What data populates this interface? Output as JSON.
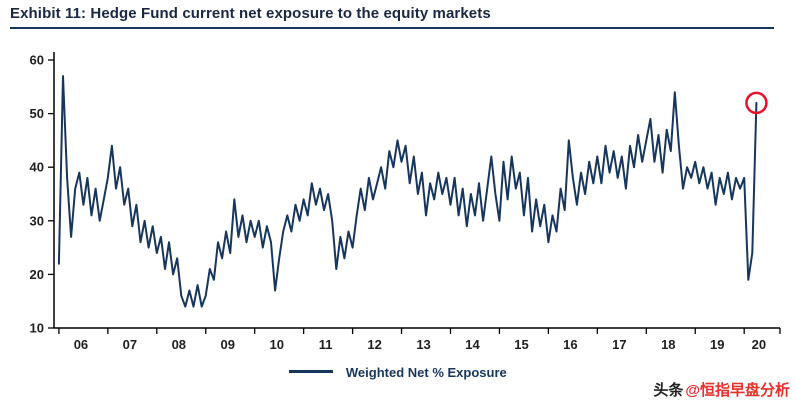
{
  "title": "Exhibit 11: Hedge Fund current net exposure to the equity markets",
  "watermark": {
    "prefix": "头条",
    "handle": "@恒指早盘分析"
  },
  "chart_data": {
    "type": "line",
    "title": "Hedge Fund current net exposure to the equity markets",
    "legend": "Weighted Net % Exposure",
    "xlabel": "",
    "ylabel": "",
    "ylim": [
      10,
      60
    ],
    "y_ticks": [
      10,
      20,
      30,
      40,
      50,
      60
    ],
    "x_start_year": 2006,
    "points_per_year": 12,
    "x_tick_labels": [
      "06",
      "07",
      "08",
      "09",
      "10",
      "11",
      "12",
      "13",
      "14",
      "15",
      "16",
      "17",
      "18",
      "19",
      "20"
    ],
    "grid": "off",
    "legend_position": "bottom-center",
    "line_color": "#17365d",
    "axis_color": "#000000",
    "annotation": {
      "type": "circle",
      "color": "#e8112d",
      "at": "last-point",
      "value": 52
    },
    "values": [
      22,
      57,
      38,
      27,
      36,
      39,
      33,
      38,
      31,
      36,
      30,
      34,
      38,
      44,
      36,
      40,
      33,
      36,
      29,
      33,
      26,
      30,
      25,
      29,
      24,
      27,
      21,
      26,
      20,
      23,
      16,
      14,
      17,
      14,
      18,
      14,
      16,
      21,
      19,
      26,
      23,
      28,
      24,
      34,
      27,
      31,
      26,
      30,
      27,
      30,
      25,
      29,
      26,
      17,
      23,
      28,
      31,
      28,
      33,
      30,
      34,
      31,
      37,
      33,
      36,
      32,
      35,
      30,
      21,
      27,
      23,
      28,
      25,
      31,
      36,
      32,
      38,
      34,
      37,
      40,
      36,
      43,
      40,
      45,
      41,
      44,
      37,
      42,
      35,
      39,
      31,
      37,
      34,
      39,
      35,
      38,
      33,
      38,
      31,
      36,
      29,
      35,
      31,
      37,
      30,
      36,
      42,
      35,
      30,
      41,
      34,
      42,
      36,
      39,
      31,
      38,
      28,
      34,
      29,
      33,
      26,
      31,
      28,
      36,
      32,
      45,
      38,
      33,
      39,
      35,
      41,
      37,
      42,
      37,
      44,
      39,
      43,
      38,
      42,
      36,
      44,
      40,
      46,
      41,
      45,
      49,
      41,
      46,
      39,
      47,
      43,
      54,
      44,
      36,
      40,
      38,
      41,
      37,
      40,
      36,
      39,
      33,
      38,
      35,
      39,
      34,
      38,
      36,
      38,
      19,
      24,
      52
    ]
  }
}
